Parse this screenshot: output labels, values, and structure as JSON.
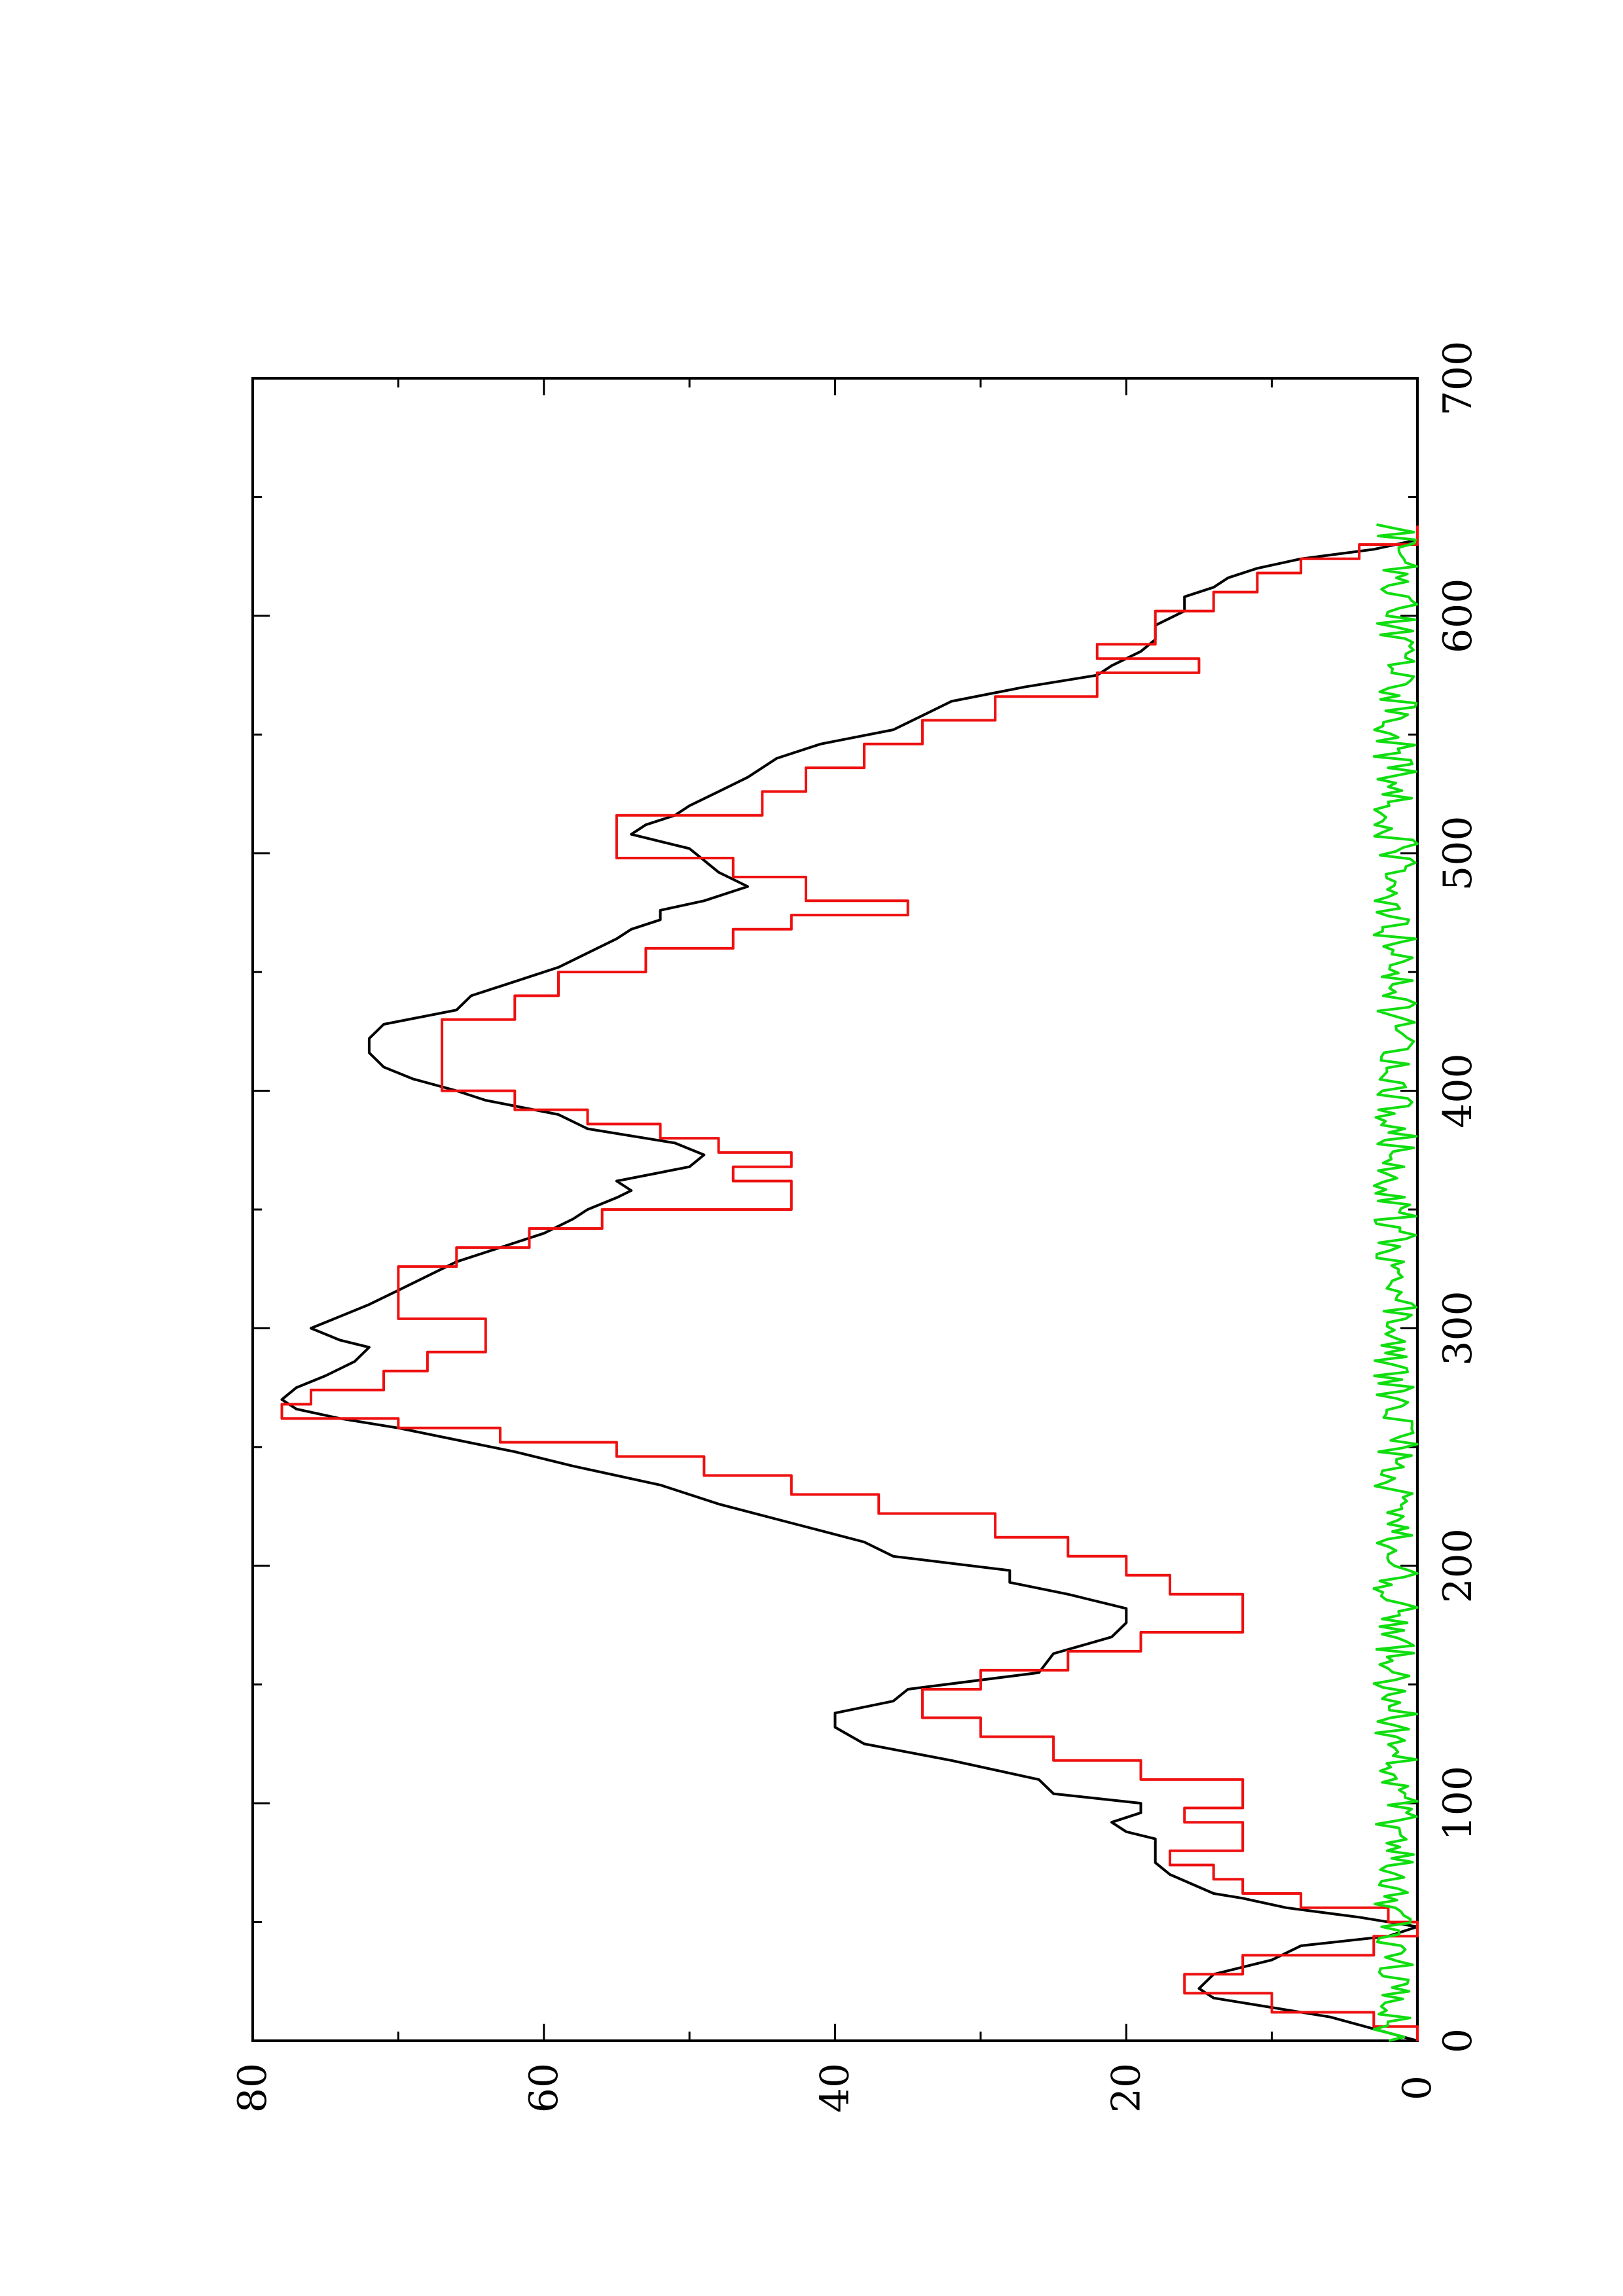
{
  "chart_data": {
    "type": "line",
    "orientation": "rotated-90-ccw",
    "title": "",
    "xlabel": "",
    "ylabel": "",
    "xlim": [
      0,
      700
    ],
    "ylim": [
      0,
      80
    ],
    "x_ticks": [
      0,
      100,
      200,
      300,
      400,
      500,
      600,
      700
    ],
    "x_minor_ticks": [
      50,
      150,
      250,
      350,
      450,
      550,
      650
    ],
    "y_ticks": [
      0,
      20,
      40,
      60,
      80
    ],
    "y_minor_ticks": [
      10,
      30,
      50,
      70
    ],
    "grid": false,
    "series": [
      {
        "color": "#000000",
        "step": false,
        "points": [
          [
            0,
            0
          ],
          [
            10,
            6
          ],
          [
            18,
            14
          ],
          [
            22,
            15
          ],
          [
            28,
            14
          ],
          [
            34,
            10
          ],
          [
            40,
            8
          ],
          [
            44,
            2
          ],
          [
            48,
            0
          ],
          [
            52,
            4
          ],
          [
            56,
            9
          ],
          [
            60,
            12
          ],
          [
            62,
            14
          ],
          [
            70,
            17
          ],
          [
            75,
            18
          ],
          [
            80,
            18
          ],
          [
            85,
            18
          ],
          [
            88,
            20
          ],
          [
            92,
            21
          ],
          [
            96,
            19
          ],
          [
            100,
            19
          ],
          [
            104,
            25
          ],
          [
            110,
            26
          ],
          [
            118,
            32
          ],
          [
            125,
            38
          ],
          [
            132,
            40
          ],
          [
            138,
            40
          ],
          [
            143,
            36
          ],
          [
            148,
            35
          ],
          [
            155,
            26
          ],
          [
            163,
            25
          ],
          [
            170,
            21
          ],
          [
            176,
            20
          ],
          [
            182,
            20
          ],
          [
            188,
            24
          ],
          [
            193,
            28
          ],
          [
            198,
            28
          ],
          [
            204,
            36
          ],
          [
            210,
            38
          ],
          [
            218,
            43
          ],
          [
            226,
            48
          ],
          [
            234,
            52
          ],
          [
            242,
            58
          ],
          [
            248,
            62
          ],
          [
            253,
            66
          ],
          [
            258,
            70
          ],
          [
            262,
            74
          ],
          [
            266,
            77
          ],
          [
            270,
            78
          ],
          [
            275,
            77
          ],
          [
            280,
            75
          ],
          [
            286,
            73
          ],
          [
            292,
            72
          ],
          [
            295,
            74
          ],
          [
            300,
            76
          ],
          [
            305,
            74
          ],
          [
            310,
            72
          ],
          [
            316,
            70
          ],
          [
            322,
            68
          ],
          [
            328,
            66
          ],
          [
            334,
            63
          ],
          [
            340,
            60
          ],
          [
            346,
            58
          ],
          [
            350,
            57
          ],
          [
            355,
            55
          ],
          [
            358,
            54
          ],
          [
            362,
            55
          ],
          [
            368,
            50
          ],
          [
            373,
            49
          ],
          [
            378,
            51
          ],
          [
            384,
            57
          ],
          [
            390,
            59
          ],
          [
            396,
            64
          ],
          [
            400,
            66
          ],
          [
            405,
            69
          ],
          [
            410,
            71
          ],
          [
            416,
            72
          ],
          [
            422,
            72
          ],
          [
            428,
            71
          ],
          [
            434,
            66
          ],
          [
            440,
            65
          ],
          [
            446,
            62
          ],
          [
            452,
            59
          ],
          [
            458,
            57
          ],
          [
            464,
            55
          ],
          [
            468,
            54
          ],
          [
            472,
            52
          ],
          [
            476,
            52
          ],
          [
            480,
            49
          ],
          [
            486,
            46
          ],
          [
            492,
            48
          ],
          [
            497,
            49
          ],
          [
            502,
            50
          ],
          [
            508,
            54
          ],
          [
            512,
            53
          ],
          [
            516,
            51
          ],
          [
            520,
            50
          ],
          [
            526,
            48
          ],
          [
            532,
            46
          ],
          [
            540,
            44
          ],
          [
            546,
            41
          ],
          [
            552,
            36
          ],
          [
            558,
            34
          ],
          [
            564,
            32
          ],
          [
            570,
            27
          ],
          [
            575,
            22
          ],
          [
            579,
            21
          ],
          [
            585,
            19
          ],
          [
            590,
            18
          ],
          [
            596,
            18
          ],
          [
            602,
            16
          ],
          [
            608,
            16
          ],
          [
            612,
            14
          ],
          [
            616,
            13
          ],
          [
            620,
            11
          ],
          [
            624,
            8
          ],
          [
            628,
            3
          ],
          [
            632,
            0
          ],
          [
            640,
            0
          ]
        ]
      },
      {
        "color": "#ee1010",
        "step": true,
        "points": [
          [
            0,
            0
          ],
          [
            6,
            3
          ],
          [
            12,
            10
          ],
          [
            20,
            16
          ],
          [
            28,
            12
          ],
          [
            36,
            3
          ],
          [
            44,
            0
          ],
          [
            50,
            2
          ],
          [
            56,
            8
          ],
          [
            62,
            12
          ],
          [
            68,
            14
          ],
          [
            74,
            17
          ],
          [
            80,
            12
          ],
          [
            86,
            12
          ],
          [
            92,
            16
          ],
          [
            98,
            12
          ],
          [
            104,
            12
          ],
          [
            110,
            19
          ],
          [
            118,
            25
          ],
          [
            128,
            30
          ],
          [
            136,
            34
          ],
          [
            142,
            34
          ],
          [
            148,
            30
          ],
          [
            156,
            24
          ],
          [
            164,
            19
          ],
          [
            172,
            12
          ],
          [
            180,
            12
          ],
          [
            188,
            17
          ],
          [
            196,
            20
          ],
          [
            204,
            24
          ],
          [
            212,
            29
          ],
          [
            222,
            37
          ],
          [
            230,
            43
          ],
          [
            238,
            49
          ],
          [
            246,
            55
          ],
          [
            252,
            63
          ],
          [
            258,
            70
          ],
          [
            262,
            78
          ],
          [
            268,
            76
          ],
          [
            274,
            71
          ],
          [
            282,
            68
          ],
          [
            290,
            64
          ],
          [
            298,
            64
          ],
          [
            304,
            70
          ],
          [
            310,
            70
          ],
          [
            318,
            70
          ],
          [
            326,
            66
          ],
          [
            334,
            61
          ],
          [
            342,
            56
          ],
          [
            350,
            43
          ],
          [
            356,
            43
          ],
          [
            362,
            47
          ],
          [
            368,
            43
          ],
          [
            374,
            48
          ],
          [
            380,
            52
          ],
          [
            386,
            57
          ],
          [
            392,
            62
          ],
          [
            400,
            67
          ],
          [
            410,
            67
          ],
          [
            420,
            67
          ],
          [
            430,
            62
          ],
          [
            440,
            59
          ],
          [
            450,
            53
          ],
          [
            460,
            47
          ],
          [
            468,
            43
          ],
          [
            474,
            35
          ],
          [
            480,
            42
          ],
          [
            490,
            47
          ],
          [
            498,
            55
          ],
          [
            508,
            55
          ],
          [
            516,
            45
          ],
          [
            526,
            42
          ],
          [
            536,
            38
          ],
          [
            546,
            34
          ],
          [
            556,
            29
          ],
          [
            566,
            22
          ],
          [
            576,
            15
          ],
          [
            582,
            22
          ],
          [
            588,
            18
          ],
          [
            596,
            18
          ],
          [
            602,
            14
          ],
          [
            610,
            11
          ],
          [
            618,
            8
          ],
          [
            624,
            4
          ],
          [
            630,
            0
          ],
          [
            638,
            0
          ]
        ]
      },
      {
        "color": "#10dd10",
        "step": false,
        "noisy_band": true,
        "x_start": 0,
        "x_end": 640,
        "x_step": 1.6,
        "y_min": 0,
        "y_max": 3
      }
    ]
  }
}
